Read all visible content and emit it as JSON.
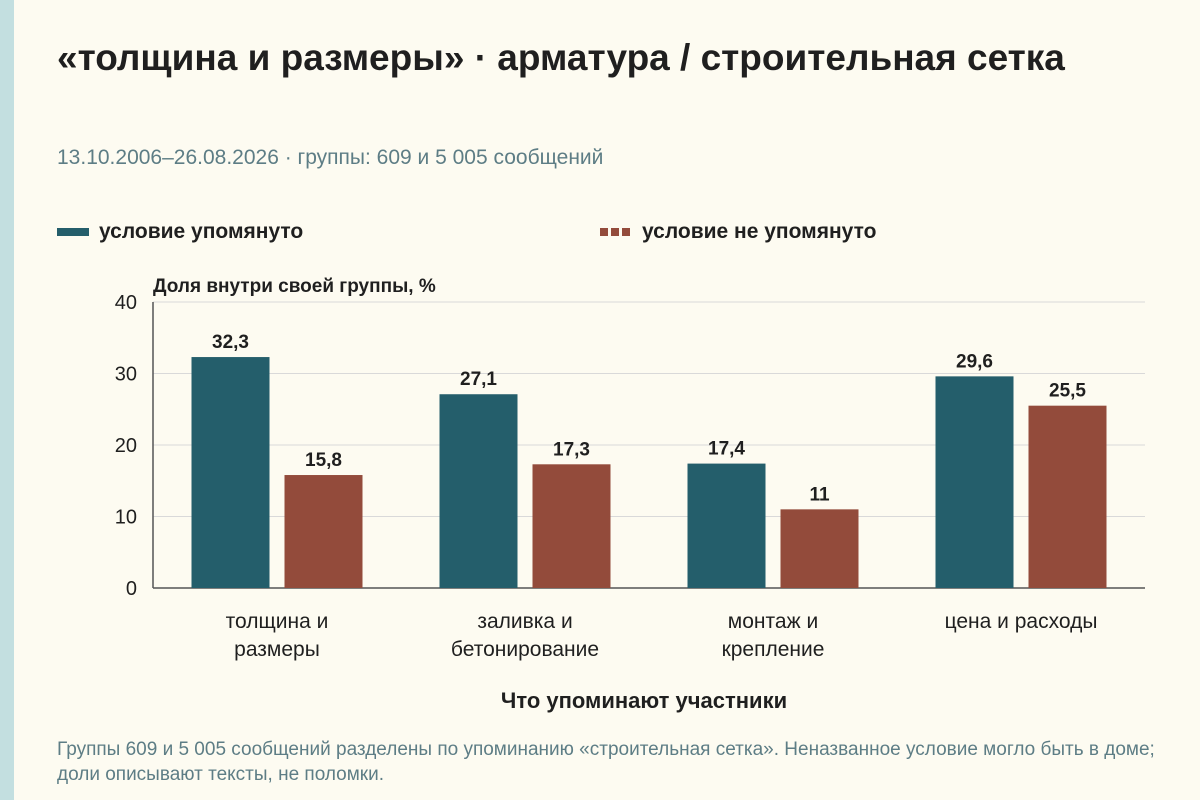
{
  "title": "«толщина и размеры» · арматура / строительная сетка",
  "subtitle": "13.10.2006–26.08.2026 · группы: 609 и 5 005 сообщений",
  "footnote": "Группы 609 и 5 005 сообщений разделены по упоминанию «строительная сетка». Неназванное условие могло быть в доме; доли описывают тексты, не поломки.",
  "colors": {
    "background": "#fdfbf1",
    "accent_strip": "#c3dfe0",
    "mentioned": "#245e6b",
    "not_mentioned": "#934b3b",
    "gridline": "#d9d9d9",
    "subtitle_text": "#5d7d85"
  },
  "chart_data": {
    "type": "bar",
    "categories": [
      [
        "толщина и",
        "размеры"
      ],
      [
        "заливка и",
        "бетонирование"
      ],
      [
        "монтаж и",
        "крепление"
      ],
      [
        "цена и расходы"
      ]
    ],
    "series": [
      {
        "name": "условие упомянуто",
        "values": [
          32.3,
          27.1,
          17.4,
          29.6
        ],
        "value_labels": [
          "32,3",
          "27,1",
          "17,4",
          "29,6"
        ]
      },
      {
        "name": "условие не упомянуто",
        "values": [
          15.8,
          17.3,
          11,
          25.5
        ],
        "value_labels": [
          "15,8",
          "17,3",
          "11",
          "25,5"
        ]
      }
    ],
    "ylabel": "Доля внутри своей группы, %",
    "xlabel": "Что упоминают участники",
    "ylim": [
      0,
      40
    ],
    "yticks": [
      0,
      10,
      20,
      30,
      40
    ],
    "grid": true,
    "legend_position": "top"
  }
}
